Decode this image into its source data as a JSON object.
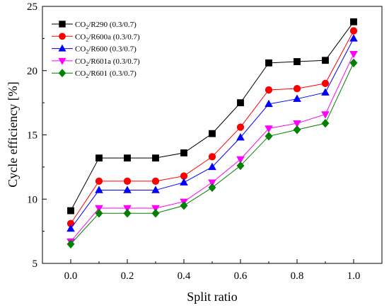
{
  "chart_data": {
    "type": "line",
    "xlabel": "Split ratio",
    "ylabel": "Cycle efficiency [%]",
    "xlim": [
      -0.1,
      1.1
    ],
    "ylim": [
      5,
      25
    ],
    "xticks": [
      "0.0",
      "0.2",
      "0.4",
      "0.6",
      "0.8",
      "1.0"
    ],
    "yticks": [
      "5",
      "10",
      "15",
      "20",
      "25"
    ],
    "grid": false,
    "legend_position": "top-left",
    "x": [
      0.0,
      0.1,
      0.2,
      0.3,
      0.4,
      0.5,
      0.6,
      0.7,
      0.8,
      0.9,
      1.0
    ],
    "series": [
      {
        "name": "CO2/R290 (0.3/0.7)",
        "legend": {
          "pre": "CO",
          "sub": "2",
          "post": "/R290 (0.3/0.7)"
        },
        "color": "#000000",
        "marker": "square",
        "values": [
          9.1,
          13.2,
          13.2,
          13.2,
          13.6,
          15.1,
          17.5,
          20.6,
          20.7,
          20.8,
          23.8
        ]
      },
      {
        "name": "CO2/R600a (0.3/0.7)",
        "legend": {
          "pre": "CO",
          "sub": "2",
          "post": "/R600a (0.3/0.7)"
        },
        "color": "#ff0000",
        "marker": "circle",
        "values": [
          8.1,
          11.4,
          11.4,
          11.4,
          11.8,
          13.3,
          15.6,
          18.5,
          18.6,
          19.0,
          23.1
        ]
      },
      {
        "name": "CO2/R600 (0.3/0.7)",
        "legend": {
          "pre": "CO",
          "sub": "2",
          "post": "/R600 (0.3/0.7)"
        },
        "color": "#0000ff",
        "marker": "triangle-up",
        "values": [
          7.7,
          10.7,
          10.7,
          10.7,
          11.3,
          12.5,
          14.8,
          17.4,
          17.8,
          18.3,
          22.5
        ]
      },
      {
        "name": "CO2/R601a (0.3/0.7)",
        "legend": {
          "pre": "CO",
          "sub": "2",
          "post": "/R601a (0.3/0.7)"
        },
        "color": "#ff00ff",
        "marker": "triangle-down",
        "values": [
          6.7,
          9.3,
          9.3,
          9.3,
          9.8,
          11.3,
          13.1,
          15.5,
          15.9,
          16.6,
          21.3
        ]
      },
      {
        "name": "CO2/R601 (0.3/0.7)",
        "legend": {
          "pre": "CO",
          "sub": "2",
          "post": "/R601 (0.3/0.7)"
        },
        "color": "#008000",
        "marker": "diamond",
        "values": [
          6.5,
          8.9,
          8.9,
          8.9,
          9.5,
          10.9,
          12.6,
          14.9,
          15.4,
          15.9,
          20.6
        ]
      }
    ]
  }
}
